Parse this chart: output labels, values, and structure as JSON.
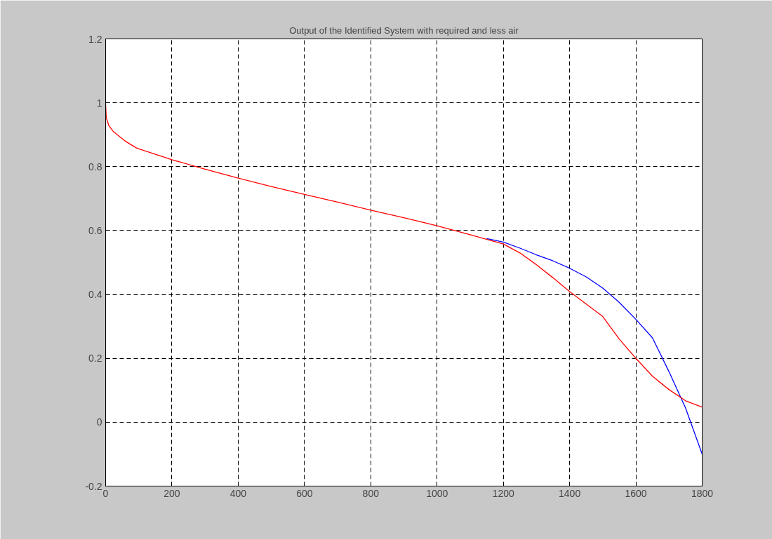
{
  "chart_data": {
    "type": "line",
    "title": "Output of the Identified System with required and less air",
    "xlim": [
      0,
      1800
    ],
    "xticks": [
      0,
      200,
      400,
      600,
      800,
      1000,
      1200,
      1400,
      1600,
      1800
    ],
    "ylim": [
      -0.2,
      1.2
    ],
    "yticks": [
      -0.2,
      0,
      0.2,
      0.4,
      0.6,
      0.8,
      1,
      1.2
    ],
    "grid": true,
    "line_style": "solid",
    "marker": "none",
    "series": [
      {
        "color": "#0000ff",
        "x": [
          1150,
          1200,
          1250,
          1300,
          1350,
          1400,
          1450,
          1500,
          1550,
          1600,
          1650,
          1700,
          1750,
          1800
        ],
        "values": [
          0.575,
          0.564,
          0.545,
          0.524,
          0.505,
          0.482,
          0.455,
          0.42,
          0.375,
          0.322,
          0.264,
          0.158,
          0.044,
          -0.1
        ]
      },
      {
        "color": "#ff0000",
        "x": [
          0,
          2,
          10,
          24,
          59,
          94,
          200,
          300,
          400,
          500,
          600,
          700,
          800,
          900,
          1000,
          1100,
          1200,
          1250,
          1300,
          1350,
          1400,
          1450,
          1500,
          1550,
          1600,
          1650,
          1700,
          1750,
          1800
        ],
        "values": [
          0.995,
          0.953,
          0.928,
          0.909,
          0.88,
          0.858,
          0.822,
          0.792,
          0.764,
          0.738,
          0.713,
          0.689,
          0.664,
          0.64,
          0.615,
          0.587,
          0.558,
          0.53,
          0.493,
          0.452,
          0.409,
          0.37,
          0.331,
          0.26,
          0.2,
          0.144,
          0.102,
          0.067,
          0.047
        ]
      }
    ]
  }
}
